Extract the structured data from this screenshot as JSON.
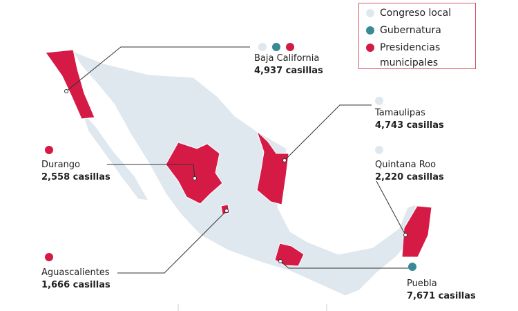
{
  "legend": {
    "items": [
      "Congreso local",
      "Gubernatura",
      "Presidencias municipales"
    ]
  },
  "states": [
    {
      "name": "Baja California",
      "casillas": "4,937 casillas"
    },
    {
      "name": "Tamaulipas",
      "casillas": "4,743 casillas"
    },
    {
      "name": "Durango",
      "casillas": "2,558 casillas"
    },
    {
      "name": "Quintana Roo",
      "casillas": "2,220 casillas"
    },
    {
      "name": "Aguascalientes",
      "casillas": "1,666 casillas"
    },
    {
      "name": "Puebla",
      "casillas": "7,671 casillas"
    }
  ]
}
